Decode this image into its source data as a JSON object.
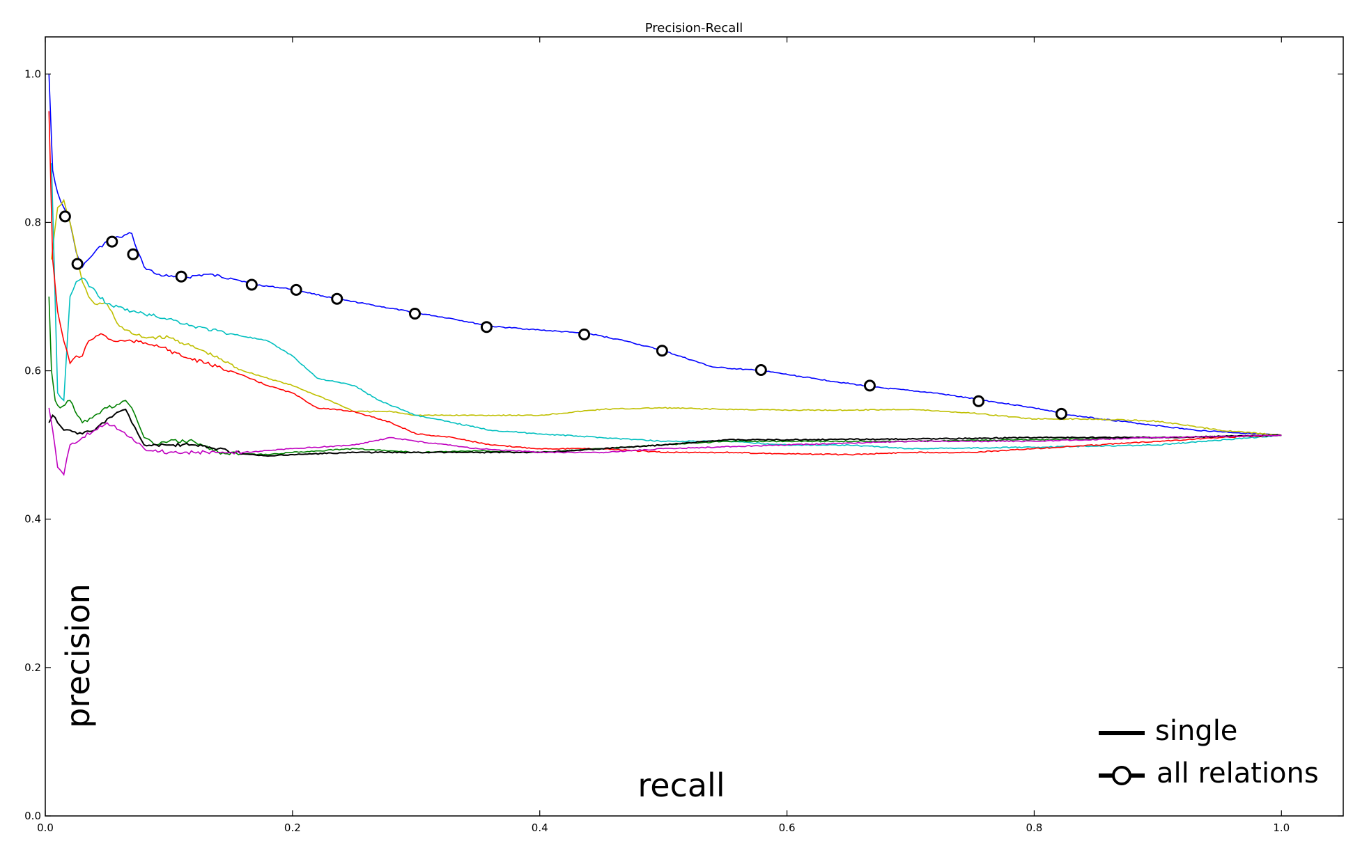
{
  "chart_data": {
    "type": "line",
    "title": "Precision-Recall",
    "xlabel": "recall",
    "ylabel": "precision",
    "xlim": [
      0.0,
      1.05
    ],
    "ylim": [
      0.0,
      1.05
    ],
    "xticks": [
      "0.0",
      "0.2",
      "0.4",
      "0.6",
      "0.8",
      "1.0"
    ],
    "yticks": [
      "0.0",
      "0.2",
      "0.4",
      "0.6",
      "0.8",
      "1.0"
    ],
    "grid": false,
    "legend": {
      "placement": "bottom-right",
      "entries": [
        {
          "label": "single",
          "style": "line",
          "color": "#000000"
        },
        {
          "label": "all relations",
          "style": "line-with-circle-marker",
          "color": "#000000"
        }
      ]
    },
    "colors": {
      "blue": "#0000ff",
      "yellow": "#bfbf00",
      "cyan": "#00bfbf",
      "red": "#ff0000",
      "green": "#008000",
      "black": "#000000",
      "magenta": "#bf00bf"
    },
    "series": [
      {
        "color": "#0000ff",
        "marker": "circle",
        "x": [
          0.003,
          0.006,
          0.01,
          0.015,
          0.02,
          0.025,
          0.03,
          0.04,
          0.05,
          0.06,
          0.07,
          0.075,
          0.08,
          0.09,
          0.1,
          0.11,
          0.13,
          0.15,
          0.17,
          0.2,
          0.235,
          0.26,
          0.3,
          0.33,
          0.36,
          0.4,
          0.44,
          0.47,
          0.5,
          0.54,
          0.58,
          0.62,
          0.67,
          0.72,
          0.76,
          0.8,
          0.83,
          0.88,
          0.93,
          1.0
        ],
        "y": [
          1.0,
          0.87,
          0.84,
          0.82,
          0.8,
          0.76,
          0.74,
          0.76,
          0.775,
          0.78,
          0.785,
          0.76,
          0.74,
          0.73,
          0.727,
          0.725,
          0.73,
          0.725,
          0.716,
          0.71,
          0.697,
          0.69,
          0.678,
          0.67,
          0.66,
          0.655,
          0.65,
          0.64,
          0.627,
          0.605,
          0.6,
          0.59,
          0.578,
          0.57,
          0.56,
          0.55,
          0.54,
          0.53,
          0.52,
          0.513
        ],
        "markers_x": [
          0.016,
          0.026,
          0.054,
          0.071,
          0.11,
          0.167,
          0.203,
          0.236,
          0.299,
          0.357,
          0.436,
          0.499,
          0.579,
          0.667,
          0.755,
          0.822
        ],
        "markers_y": [
          0.808,
          0.744,
          0.774,
          0.757,
          0.727,
          0.716,
          0.709,
          0.697,
          0.677,
          0.659,
          0.649,
          0.627,
          0.601,
          0.58,
          0.559,
          0.542
        ]
      },
      {
        "color": "#bfbf00",
        "x": [
          0.005,
          0.01,
          0.015,
          0.02,
          0.03,
          0.035,
          0.04,
          0.05,
          0.06,
          0.07,
          0.08,
          0.1,
          0.13,
          0.16,
          0.2,
          0.23,
          0.25,
          0.28,
          0.3,
          0.35,
          0.4,
          0.45,
          0.5,
          0.55,
          0.6,
          0.65,
          0.7,
          0.75,
          0.8,
          0.85,
          0.9,
          0.95,
          1.0
        ],
        "y": [
          0.75,
          0.82,
          0.83,
          0.8,
          0.72,
          0.7,
          0.69,
          0.69,
          0.66,
          0.65,
          0.645,
          0.645,
          0.625,
          0.6,
          0.58,
          0.56,
          0.545,
          0.545,
          0.54,
          0.54,
          0.54,
          0.548,
          0.55,
          0.548,
          0.547,
          0.547,
          0.548,
          0.543,
          0.535,
          0.535,
          0.532,
          0.52,
          0.513
        ]
      },
      {
        "color": "#00bfbf",
        "x": [
          0.005,
          0.01,
          0.015,
          0.02,
          0.025,
          0.03,
          0.05,
          0.07,
          0.1,
          0.12,
          0.15,
          0.18,
          0.2,
          0.22,
          0.25,
          0.27,
          0.3,
          0.33,
          0.36,
          0.4,
          0.45,
          0.5,
          0.55,
          0.6,
          0.65,
          0.7,
          0.8,
          0.9,
          1.0
        ],
        "y": [
          0.88,
          0.57,
          0.56,
          0.7,
          0.72,
          0.725,
          0.69,
          0.68,
          0.67,
          0.66,
          0.65,
          0.64,
          0.62,
          0.59,
          0.58,
          0.56,
          0.54,
          0.53,
          0.52,
          0.515,
          0.51,
          0.505,
          0.505,
          0.5,
          0.5,
          0.495,
          0.497,
          0.5,
          0.513
        ]
      },
      {
        "color": "#ff0000",
        "x": [
          0.003,
          0.006,
          0.01,
          0.015,
          0.02,
          0.025,
          0.03,
          0.035,
          0.045,
          0.055,
          0.07,
          0.09,
          0.11,
          0.13,
          0.15,
          0.18,
          0.2,
          0.22,
          0.25,
          0.28,
          0.3,
          0.33,
          0.36,
          0.4,
          0.45,
          0.5,
          0.55,
          0.6,
          0.65,
          0.7,
          0.75,
          0.8,
          0.85,
          0.9,
          0.95,
          1.0
        ],
        "y": [
          0.95,
          0.75,
          0.68,
          0.64,
          0.61,
          0.62,
          0.62,
          0.64,
          0.65,
          0.64,
          0.64,
          0.635,
          0.62,
          0.61,
          0.6,
          0.58,
          0.57,
          0.55,
          0.545,
          0.53,
          0.515,
          0.51,
          0.5,
          0.495,
          0.495,
          0.49,
          0.49,
          0.488,
          0.487,
          0.49,
          0.49,
          0.495,
          0.5,
          0.505,
          0.51,
          0.513
        ]
      },
      {
        "color": "#008000",
        "x": [
          0.003,
          0.005,
          0.008,
          0.012,
          0.02,
          0.03,
          0.04,
          0.05,
          0.06,
          0.065,
          0.07,
          0.075,
          0.08,
          0.09,
          0.1,
          0.12,
          0.14,
          0.16,
          0.18,
          0.2,
          0.25,
          0.3,
          0.35,
          0.4,
          0.45,
          0.5,
          0.55,
          0.6,
          0.7,
          0.8,
          0.9,
          1.0
        ],
        "y": [
          0.7,
          0.6,
          0.56,
          0.55,
          0.56,
          0.53,
          0.54,
          0.55,
          0.555,
          0.56,
          0.55,
          0.53,
          0.51,
          0.5,
          0.505,
          0.505,
          0.49,
          0.488,
          0.487,
          0.49,
          0.495,
          0.49,
          0.492,
          0.49,
          0.495,
          0.5,
          0.505,
          0.505,
          0.505,
          0.507,
          0.51,
          0.513
        ]
      },
      {
        "color": "#000000",
        "x": [
          0.003,
          0.006,
          0.01,
          0.015,
          0.02,
          0.03,
          0.04,
          0.05,
          0.06,
          0.065,
          0.07,
          0.075,
          0.08,
          0.09,
          0.1,
          0.12,
          0.14,
          0.16,
          0.18,
          0.2,
          0.25,
          0.3,
          0.35,
          0.4,
          0.45,
          0.5,
          0.55,
          0.6,
          0.7,
          0.8,
          0.9,
          1.0
        ],
        "y": [
          0.53,
          0.54,
          0.53,
          0.52,
          0.52,
          0.515,
          0.52,
          0.535,
          0.545,
          0.548,
          0.53,
          0.515,
          0.5,
          0.5,
          0.5,
          0.5,
          0.495,
          0.488,
          0.485,
          0.487,
          0.49,
          0.49,
          0.49,
          0.49,
          0.495,
          0.5,
          0.507,
          0.507,
          0.508,
          0.51,
          0.51,
          0.513
        ]
      },
      {
        "color": "#bf00bf",
        "x": [
          0.003,
          0.006,
          0.01,
          0.015,
          0.02,
          0.03,
          0.04,
          0.05,
          0.06,
          0.07,
          0.08,
          0.1,
          0.12,
          0.14,
          0.16,
          0.2,
          0.25,
          0.28,
          0.3,
          0.35,
          0.4,
          0.45,
          0.5,
          0.6,
          0.7,
          0.8,
          0.9,
          1.0
        ],
        "y": [
          0.55,
          0.52,
          0.47,
          0.46,
          0.5,
          0.51,
          0.52,
          0.53,
          0.52,
          0.51,
          0.495,
          0.49,
          0.49,
          0.49,
          0.49,
          0.495,
          0.5,
          0.51,
          0.505,
          0.495,
          0.49,
          0.49,
          0.495,
          0.5,
          0.505,
          0.505,
          0.51,
          0.513
        ]
      }
    ]
  }
}
